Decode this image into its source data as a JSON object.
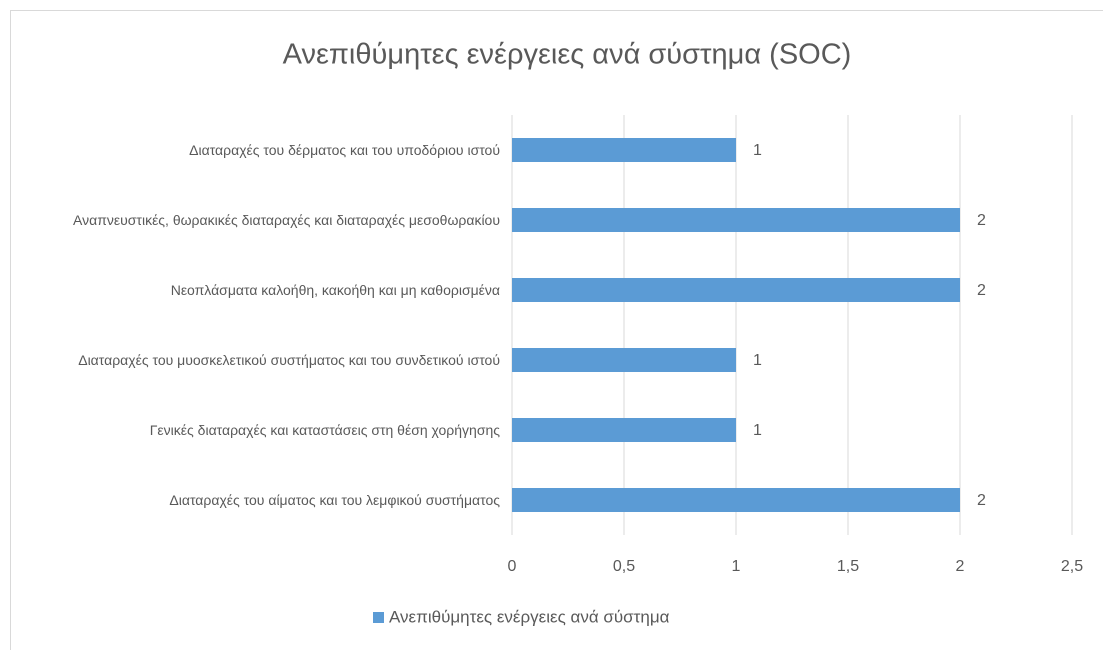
{
  "chart_data": {
    "type": "bar",
    "orientation": "horizontal",
    "title": "Ανεπιθύμητες ενέργειες ανά σύστημα (SOC)",
    "categories": [
      "Διαταραχές του δέρματος και του υποδόριου ιστού",
      "Αναπνευστικές, θωρακικές διαταραχές και διαταραχές μεσοθωρακίου",
      "Νεοπλάσματα καλοήθη, κακοήθη και μη καθορισμένα",
      "Διαταραχές του μυοσκελετικού συστήματος και του συνδετικού ιστού",
      "Γενικές διαταραχές και καταστάσεις στη θέση χορήγησης",
      "Διαταραχές του αίματος και του λεμφικού συστήματος"
    ],
    "series": [
      {
        "name": "Ανεπιθύμητες ενέργειες ανά σύστημα",
        "color": "#5b9bd5",
        "values": [
          1,
          2,
          2,
          1,
          1,
          2
        ]
      }
    ],
    "xlim": [
      0,
      2.5
    ],
    "xticks": [
      0,
      {
        "value": 0.5,
        "label": "0,5"
      },
      1,
      {
        "value": 1.5,
        "label": "1,5"
      },
      2,
      {
        "value": 2.5,
        "label": "2,5"
      }
    ],
    "grid": true,
    "legend": "bottom"
  }
}
